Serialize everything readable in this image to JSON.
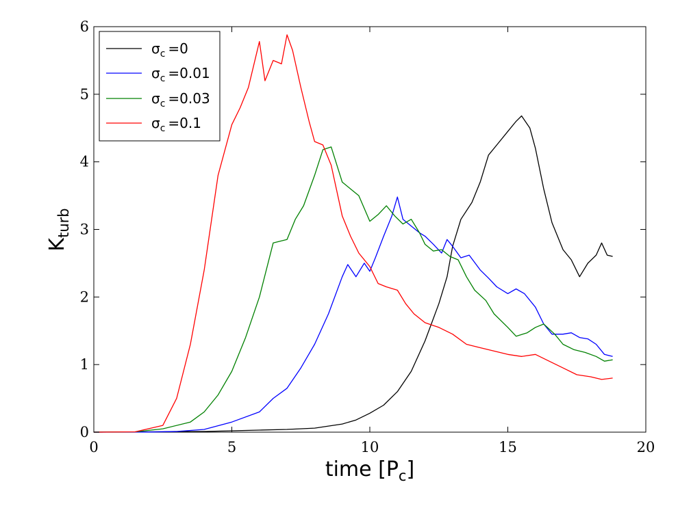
{
  "chart_data": {
    "type": "line",
    "xlabel_main": "time [P",
    "xlabel_sub": "c",
    "xlabel_close": "]",
    "ylabel_main": "K",
    "ylabel_sub": "turb",
    "xlim": [
      0,
      20
    ],
    "ylim": [
      0,
      6
    ],
    "xticks": [
      0,
      5,
      10,
      15,
      20
    ],
    "yticks": [
      0,
      1,
      2,
      3,
      4,
      5,
      6
    ],
    "xtick_labels": [
      "0",
      "5",
      "10",
      "15",
      "20"
    ],
    "ytick_labels": [
      "0",
      "1",
      "2",
      "3",
      "4",
      "5",
      "6"
    ],
    "grid": false,
    "legend_position": "top-left",
    "series": [
      {
        "name": "σc=0",
        "legend_sym": "σ",
        "legend_sub": "c",
        "legend_eq": "=0",
        "color": "#000000",
        "x": [
          0,
          2,
          4,
          5,
          6,
          7,
          8,
          9,
          9.5,
          10,
          10.5,
          11,
          11.5,
          12,
          12.5,
          12.8,
          13,
          13.3,
          13.7,
          14,
          14.3,
          14.6,
          15,
          15.3,
          15.5,
          15.8,
          16,
          16.3,
          16.6,
          17,
          17.3,
          17.6,
          17.9,
          18.2,
          18.4,
          18.6,
          18.8
        ],
        "y": [
          0,
          0.005,
          0.01,
          0.02,
          0.03,
          0.04,
          0.06,
          0.12,
          0.18,
          0.28,
          0.4,
          0.6,
          0.9,
          1.35,
          1.9,
          2.3,
          2.75,
          3.15,
          3.4,
          3.7,
          4.1,
          4.25,
          4.45,
          4.6,
          4.68,
          4.5,
          4.2,
          3.6,
          3.1,
          2.7,
          2.55,
          2.3,
          2.5,
          2.62,
          2.8,
          2.62,
          2.6
        ]
      },
      {
        "name": "σc=0.01",
        "legend_sym": "σ",
        "legend_sub": "c",
        "legend_eq": "=0.01",
        "color": "#0000ff",
        "x": [
          0,
          2,
          3,
          4,
          5,
          6,
          6.5,
          7,
          7.5,
          8,
          8.5,
          9,
          9.2,
          9.5,
          9.8,
          10,
          10.2,
          10.5,
          10.8,
          11,
          11.2,
          11.5,
          11.8,
          12,
          12.3,
          12.6,
          12.8,
          13,
          13.3,
          13.6,
          14,
          14.3,
          14.6,
          15,
          15.3,
          15.6,
          16,
          16.3,
          16.6,
          17,
          17.3,
          17.6,
          17.9,
          18.2,
          18.5,
          18.8
        ],
        "y": [
          0,
          0.002,
          0.01,
          0.04,
          0.15,
          0.3,
          0.5,
          0.65,
          0.95,
          1.3,
          1.75,
          2.3,
          2.48,
          2.3,
          2.5,
          2.38,
          2.58,
          2.9,
          3.2,
          3.48,
          3.15,
          3.05,
          2.95,
          2.9,
          2.78,
          2.65,
          2.85,
          2.75,
          2.58,
          2.62,
          2.4,
          2.28,
          2.15,
          2.05,
          2.12,
          2.05,
          1.85,
          1.6,
          1.45,
          1.45,
          1.47,
          1.4,
          1.38,
          1.3,
          1.15,
          1.12
        ]
      },
      {
        "name": "σc=0.03",
        "legend_sym": "σ",
        "legend_sub": "c",
        "legend_eq": "=0.03",
        "color": "#008000",
        "x": [
          0,
          1.5,
          2.5,
          3.5,
          4,
          4.5,
          5,
          5.5,
          6,
          6.5,
          7,
          7.3,
          7.6,
          8,
          8.3,
          8.6,
          9,
          9.3,
          9.6,
          10,
          10.3,
          10.6,
          10.9,
          11.2,
          11.5,
          11.8,
          12,
          12.3,
          12.6,
          12.9,
          13.2,
          13.5,
          13.8,
          14.2,
          14.5,
          15,
          15.3,
          15.7,
          16,
          16.3,
          16.7,
          17,
          17.4,
          17.8,
          18.2,
          18.5,
          18.8
        ],
        "y": [
          0,
          0.005,
          0.05,
          0.15,
          0.3,
          0.55,
          0.9,
          1.4,
          2.0,
          2.8,
          2.85,
          3.15,
          3.35,
          3.8,
          4.18,
          4.22,
          3.7,
          3.6,
          3.5,
          3.12,
          3.22,
          3.35,
          3.2,
          3.08,
          3.15,
          2.95,
          2.78,
          2.68,
          2.7,
          2.6,
          2.55,
          2.3,
          2.1,
          1.95,
          1.75,
          1.55,
          1.42,
          1.47,
          1.55,
          1.6,
          1.45,
          1.3,
          1.22,
          1.18,
          1.12,
          1.05,
          1.07
        ]
      },
      {
        "name": "σc=0.1",
        "legend_sym": "σ",
        "legend_sub": "c",
        "legend_eq": "=0.1",
        "color": "#ff0000",
        "x": [
          0,
          1.5,
          2.5,
          3,
          3.5,
          4,
          4.5,
          5,
          5.3,
          5.6,
          6,
          6.2,
          6.5,
          6.8,
          7,
          7.2,
          7.5,
          7.8,
          8,
          8.3,
          8.6,
          9,
          9.3,
          9.6,
          10,
          10.3,
          10.6,
          11,
          11.3,
          11.6,
          12,
          12.5,
          13,
          13.5,
          14,
          14.5,
          15,
          15.5,
          16,
          16.5,
          17,
          17.5,
          18,
          18.4,
          18.8
        ],
        "y": [
          0,
          0.005,
          0.1,
          0.5,
          1.3,
          2.4,
          3.8,
          4.55,
          4.8,
          5.1,
          5.78,
          5.2,
          5.5,
          5.45,
          5.88,
          5.65,
          5.1,
          4.6,
          4.3,
          4.25,
          3.95,
          3.2,
          2.9,
          2.65,
          2.45,
          2.2,
          2.15,
          2.1,
          1.9,
          1.75,
          1.62,
          1.55,
          1.45,
          1.3,
          1.25,
          1.2,
          1.15,
          1.12,
          1.15,
          1.05,
          0.95,
          0.85,
          0.82,
          0.78,
          0.8
        ]
      }
    ]
  }
}
